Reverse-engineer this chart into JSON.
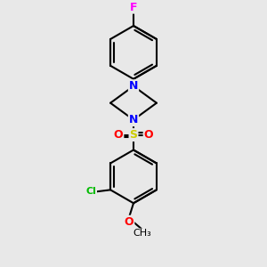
{
  "background_color": "#e8e8e8",
  "bond_color": "#000000",
  "bond_width": 1.5,
  "atom_colors": {
    "F": "#ff00ff",
    "N": "#0000ff",
    "S": "#cccc00",
    "O": "#ff0000",
    "Cl": "#00bb00",
    "C": "#000000"
  },
  "font_size": 9,
  "fig_width": 3.0,
  "fig_height": 3.0,
  "dpi": 100
}
